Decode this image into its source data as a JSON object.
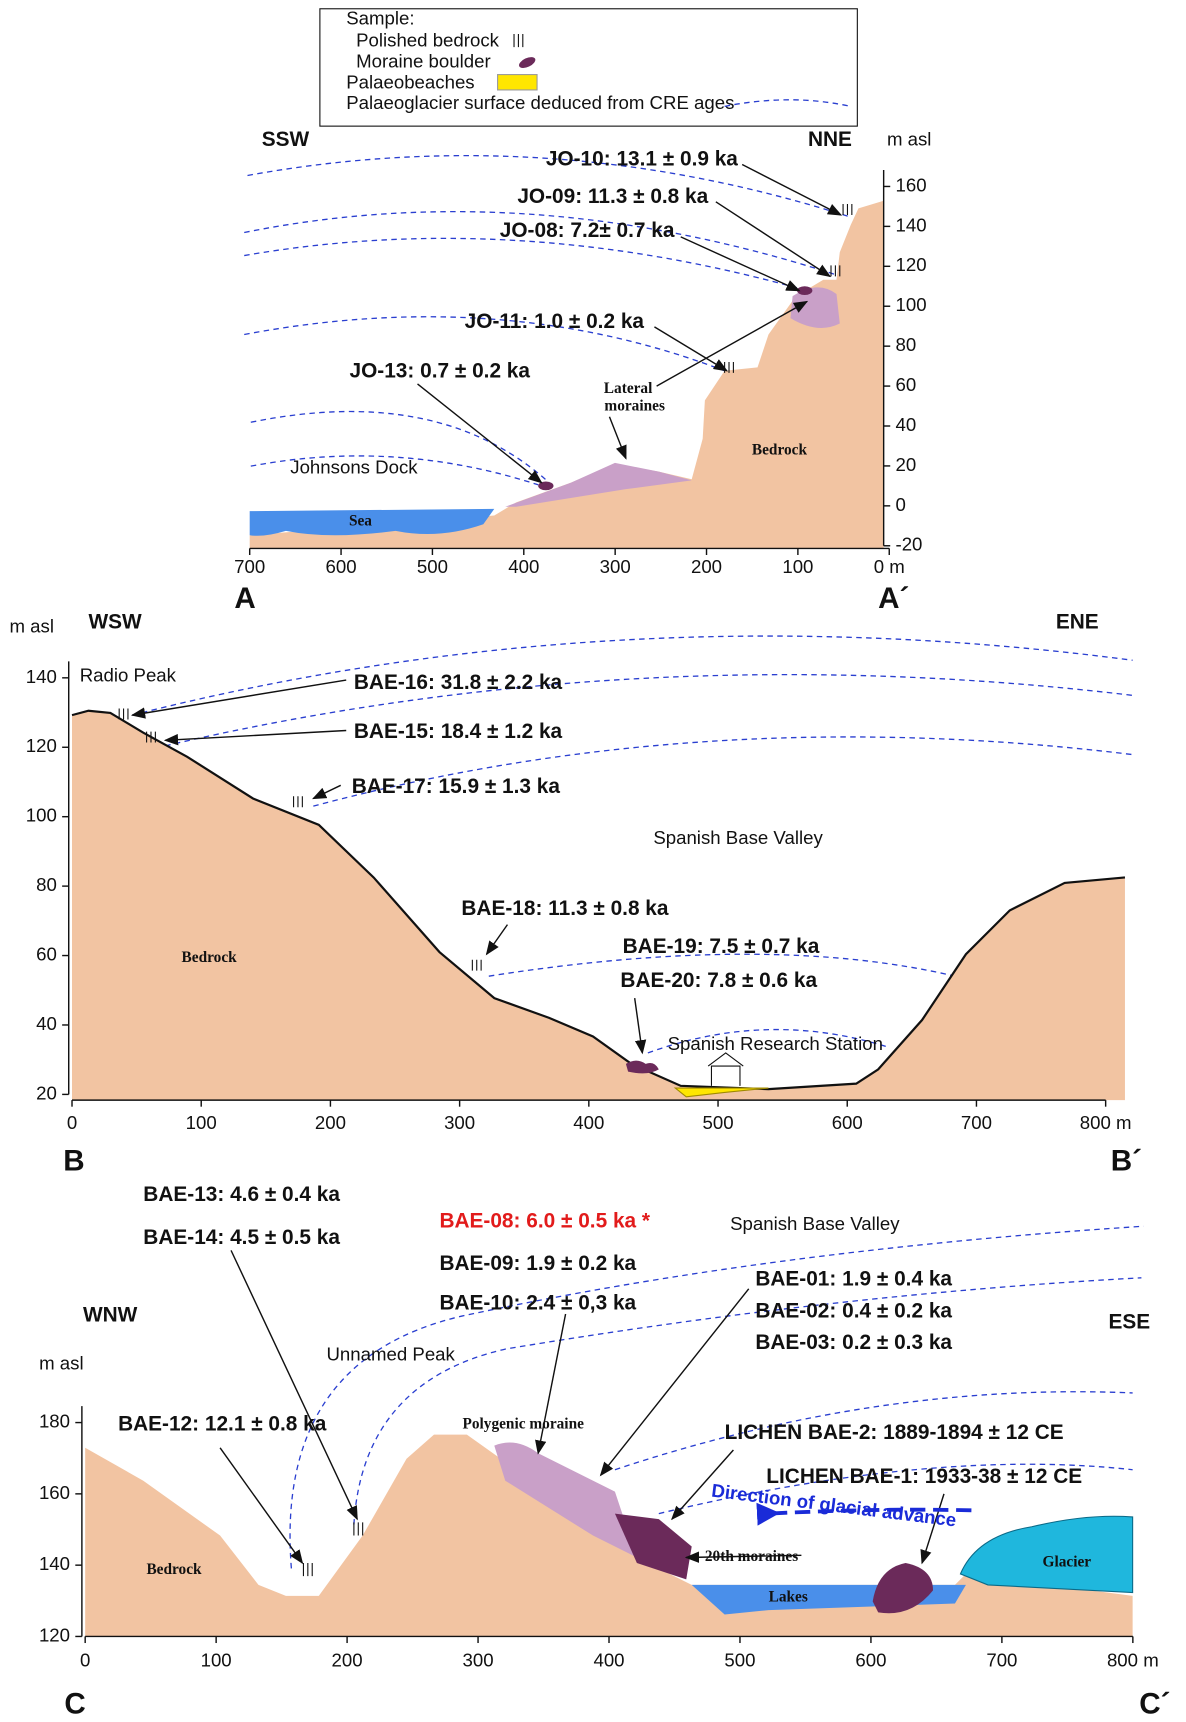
{
  "panel_a": {
    "legend": {
      "title": "Sample:",
      "items": [
        "Polished bedrock",
        "Moraine boulder",
        "Palaeobeaches",
        "Palaeoglacier surface deduced from CRE ages"
      ]
    },
    "direction_left": "SSW",
    "direction_right": "NNE",
    "y_axis_label": "m asl",
    "yticks": [
      160,
      140,
      120,
      100,
      80,
      60,
      40,
      20,
      0,
      -20
    ],
    "xticks": [
      700,
      600,
      500,
      400,
      300,
      200,
      100,
      "0 m"
    ],
    "samples": [
      "JO-10: 13.1 ± 0.9 ka",
      "JO-09: 11.3 ± 0.8 ka",
      "JO-08: 7.2± 0.7 ka",
      "JO-11: 1.0 ± 0.2 ka",
      "JO-13: 0.7 ± 0.2 ka"
    ],
    "labels": [
      "Lateral",
      "moraines",
      "Bedrock",
      "Johnsons Dock",
      "Sea"
    ],
    "section_start": "A",
    "section_end": "A´"
  },
  "panel_b": {
    "direction_left": "WSW",
    "direction_right": "ENE",
    "y_axis_label": "m asl",
    "yticks": [
      140,
      120,
      100,
      80,
      60,
      40,
      20
    ],
    "xticks": [
      0,
      100,
      200,
      300,
      400,
      500,
      600,
      700,
      "800 m"
    ],
    "samples": [
      "BAE-16: 31.8 ± 2.2 ka",
      "BAE-15: 18.4 ± 1.2 ka",
      "BAE-17: 15.9 ± 1.3 ka",
      "BAE-18: 11.3 ± 0.8 ka",
      "BAE-19: 7.5 ± 0.7 ka",
      "BAE-20: 7.8 ± 0.6 ka"
    ],
    "labels": [
      "Radio Peak",
      "Spanish Base Valley",
      "Spanish Research Station",
      "Bedrock"
    ],
    "section_start": "B",
    "section_end": "B´"
  },
  "panel_c": {
    "direction_left": "WNW",
    "direction_right": "ESE",
    "y_axis_label": "m asl",
    "yticks": [
      180,
      160,
      140,
      120
    ],
    "xticks": [
      0,
      100,
      200,
      300,
      400,
      500,
      600,
      700,
      "800 m"
    ],
    "samples": [
      "BAE-13: 4.6 ± 0.4 ka",
      "BAE-14: 4.5 ± 0.5 ka",
      "BAE-08: 6.0 ± 0.5 ka *",
      "BAE-09: 1.9 ± 0.2 ka",
      "BAE-10: 2.4 ± 0,3 ka",
      "BAE-01: 1.9 ± 0.4 ka",
      "BAE-02: 0.4 ± 0.2 ka",
      "BAE-03: 0.2 ± 0.3 ka",
      "BAE-12: 12.1 ± 0.8 ka",
      "LICHEN BAE-2: 1889-1894 ± 12  CE",
      "LICHEN BAE-1: 1933-38  ± 12 CE"
    ],
    "labels": [
      "Spanish Base Valley",
      "Unnamed Peak",
      "Polygenic moraine",
      "Direction of glacial advance",
      "Bedrock",
      "20th moraines",
      "Lakes",
      "Glacier"
    ],
    "section_start": "C",
    "section_end": "C´"
  }
}
